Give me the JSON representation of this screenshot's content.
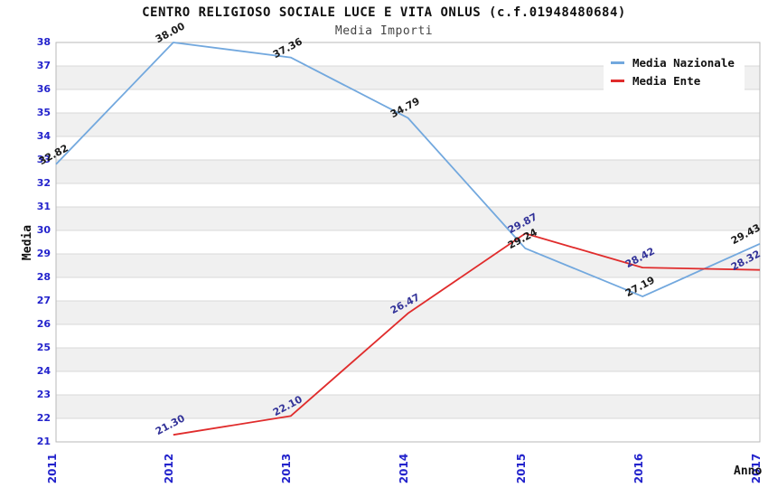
{
  "header": {
    "title": "CENTRO RELIGIOSO SOCIALE LUCE E VITA ONLUS (c.f.01948480684)",
    "subtitle": "Media Importi"
  },
  "chart_data": {
    "type": "line",
    "x": [
      "2011",
      "2012",
      "2013",
      "2014",
      "2015",
      "2016",
      "2017"
    ],
    "xlabel": "Anno",
    "ylabel": "Media",
    "ylim": [
      21,
      38
    ],
    "y_tick_step": 1,
    "grid": "horizontal gridlines with alternating shaded bands",
    "legend_position": "top-right",
    "series": [
      {
        "name": "Media Nazionale",
        "color": "#72a8de",
        "label_color": "#1a1a1a",
        "points": [
          {
            "x": "2011",
            "y": 32.82,
            "label": "32.82"
          },
          {
            "x": "2012",
            "y": 38.0,
            "label": "38.00"
          },
          {
            "x": "2013",
            "y": 37.36,
            "label": "37.36"
          },
          {
            "x": "2014",
            "y": 34.79,
            "label": "34.79"
          },
          {
            "x": "2015",
            "y": 29.24,
            "label": "29.24"
          },
          {
            "x": "2016",
            "y": 27.19,
            "label": "27.19"
          },
          {
            "x": "2017",
            "y": 29.43,
            "label": "29.43"
          }
        ]
      },
      {
        "name": "Media Ente",
        "color": "#e02c2c",
        "label_color": "#333399",
        "points": [
          {
            "x": "2012",
            "y": 21.3,
            "label": "21.30"
          },
          {
            "x": "2013",
            "y": 22.1,
            "label": "22.10"
          },
          {
            "x": "2014",
            "y": 26.47,
            "label": "26.47"
          },
          {
            "x": "2015",
            "y": 29.87,
            "label": "29.87"
          },
          {
            "x": "2016",
            "y": 28.42,
            "label": "28.42"
          },
          {
            "x": "2017",
            "y": 28.32,
            "label": "28.32"
          }
        ]
      }
    ]
  },
  "colors": {
    "band_shade": "#f0f0f0",
    "gridline": "#d9d9d9",
    "plot_border": "#b9b9b9",
    "tick_label": "#2323cc"
  }
}
